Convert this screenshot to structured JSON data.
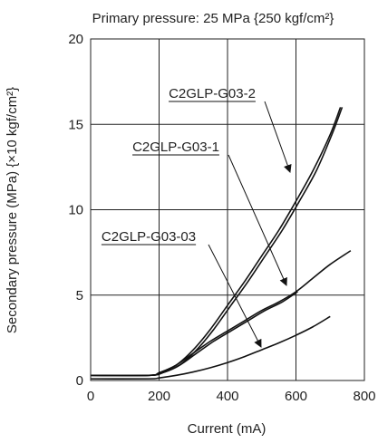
{
  "chart_data": {
    "type": "line",
    "title": "Primary pressure: 25 MPa {250 kgf/cm²}",
    "xlabel": "Current (mA)",
    "ylabel": "Secondary pressure (MPa) {×10 kgf/cm²}",
    "xlim": [
      0,
      800
    ],
    "ylim": [
      0,
      20
    ],
    "x_ticks": [
      "0",
      "200",
      "400",
      "600",
      "800"
    ],
    "y_ticks": [
      "0",
      "5",
      "10",
      "15",
      "20"
    ],
    "grid": true,
    "series": [
      {
        "name": "C2GLP-G03-2",
        "curves": [
          [
            [
              0,
              0.3
            ],
            [
              170,
              0.3
            ],
            [
              200,
              0.45
            ],
            [
              250,
              0.9
            ],
            [
              300,
              1.8
            ],
            [
              350,
              3.0
            ],
            [
              400,
              4.4
            ],
            [
              450,
              5.8
            ],
            [
              500,
              7.3
            ],
            [
              550,
              8.8
            ],
            [
              600,
              10.5
            ],
            [
              650,
              12.3
            ],
            [
              700,
              14.4
            ],
            [
              730,
              16.0
            ]
          ],
          [
            [
              0,
              0.3
            ],
            [
              170,
              0.3
            ],
            [
              210,
              0.45
            ],
            [
              260,
              0.9
            ],
            [
              310,
              1.8
            ],
            [
              360,
              3.0
            ],
            [
              410,
              4.4
            ],
            [
              460,
              5.8
            ],
            [
              510,
              7.3
            ],
            [
              560,
              8.8
            ],
            [
              610,
              10.5
            ],
            [
              660,
              12.3
            ],
            [
              705,
              14.4
            ],
            [
              735,
              16.0
            ]
          ]
        ]
      },
      {
        "name": "C2GLP-G03-1",
        "curves": [
          [
            [
              0,
              0.3
            ],
            [
              170,
              0.3
            ],
            [
              200,
              0.45
            ],
            [
              250,
              0.9
            ],
            [
              300,
              1.6
            ],
            [
              350,
              2.3
            ],
            [
              400,
              2.9
            ],
            [
              450,
              3.5
            ],
            [
              500,
              4.1
            ],
            [
              550,
              4.6
            ],
            [
              600,
              5.2
            ],
            [
              650,
              6.0
            ],
            [
              700,
              6.8
            ],
            [
              760,
              7.6
            ]
          ],
          [
            [
              0,
              0.3
            ],
            [
              170,
              0.3
            ],
            [
              210,
              0.45
            ],
            [
              260,
              0.9
            ],
            [
              310,
              1.6
            ],
            [
              360,
              2.3
            ],
            [
              410,
              2.9
            ],
            [
              460,
              3.5
            ],
            [
              510,
              4.1
            ],
            [
              560,
              4.6
            ],
            [
              605,
              5.2
            ]
          ]
        ]
      },
      {
        "name": "C2GLP-G03-03",
        "curves": [
          [
            [
              0,
              0.1
            ],
            [
              170,
              0.1
            ],
            [
              200,
              0.15
            ],
            [
              250,
              0.3
            ],
            [
              300,
              0.5
            ],
            [
              350,
              0.75
            ],
            [
              400,
              1.05
            ],
            [
              450,
              1.4
            ],
            [
              500,
              1.8
            ],
            [
              550,
              2.2
            ],
            [
              600,
              2.65
            ],
            [
              650,
              3.15
            ],
            [
              700,
              3.75
            ]
          ]
        ]
      }
    ]
  }
}
